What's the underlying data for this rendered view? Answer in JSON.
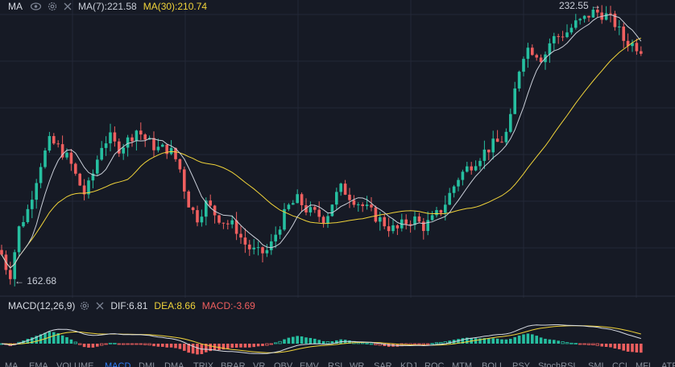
{
  "legend": {
    "title": "MA",
    "ma7_label": "MA(7):221.58",
    "ma30_label": "MA(30):210.74",
    "ma7_color": "#c9ced8",
    "ma30_color": "#f0d33a"
  },
  "macd_legend": {
    "title": "MACD(12,26,9)",
    "dif": "DIF:6.81",
    "dea": "DEA:8.66",
    "macd": "MACD:-3.69",
    "dif_color": "#d7dbe3",
    "dea_color": "#f0d33a",
    "macd_color": "#ef5f5f"
  },
  "price_labels": {
    "high": "232.55",
    "low": "162.68"
  },
  "colors": {
    "up": "#26bfa0",
    "down": "#ef5f5f",
    "background": "#161a25",
    "grid": "#232836"
  },
  "icons": [
    "eye-icon",
    "settings-icon",
    "close-icon"
  ],
  "indicator_tabs": [
    "MA",
    "EMA",
    "VOLUME",
    "MACD",
    "DMI",
    "DMA",
    "TRIX",
    "BRAR",
    "VR",
    "OBV",
    "EMV",
    "RSI",
    "WR",
    "SAR",
    "KDJ",
    "ROC",
    "MTM",
    "BOLL",
    "PSY",
    "StochRSI",
    "SMI",
    "CCI",
    "MFI",
    "ATR"
  ],
  "active_tab": "MACD",
  "chart_data": {
    "type": "candlestick",
    "price_high": 232.55,
    "price_low": 162.68,
    "ma7_last": 221.58,
    "ma30_last": 210.74,
    "macd": {
      "dif": 6.81,
      "dea": 8.66,
      "macd": -3.69
    }
  }
}
